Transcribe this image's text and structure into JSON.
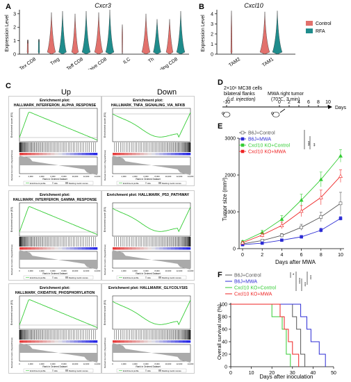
{
  "panel_labels": {
    "a": "A",
    "b": "B",
    "c": "C",
    "d": "D",
    "e": "E",
    "f": "F"
  },
  "panel_a": {
    "title": "Cxcr3",
    "ylabel": "Expression Level",
    "yticks": [
      "0",
      "1",
      "2",
      "3"
    ],
    "categories": [
      "Tex CD8",
      "Treg",
      "Teff CD8",
      "Naive CD8",
      "ILC",
      "Th",
      "Cycling CD8"
    ]
  },
  "panel_b": {
    "title": "Cxcl10",
    "ylabel": "Expression Level",
    "yticks": [
      "0",
      "1",
      "2",
      "3",
      "4"
    ],
    "categories": [
      "TAM2",
      "TAM1"
    ],
    "legend": [
      {
        "label": "Control",
        "color": "#E2716C"
      },
      {
        "label": "RFA",
        "color": "#1F8C8C"
      }
    ]
  },
  "panel_c": {
    "col_up": "Up",
    "col_down": "Down",
    "plots": [
      {
        "head": "Enrichment plot:",
        "name": "HALLMARK_INTERFERON_ALPHA_RESPONSE",
        "dir": "up"
      },
      {
        "head": "Enrichment plot:",
        "name": "HALLMARK_TNFA_SIGNALING_VIA_NFKB",
        "dir": "down"
      },
      {
        "head": "Enrichment plot:",
        "name": "HALLMARK_INTERFERON_GAMMA_RESPONSE",
        "dir": "up"
      },
      {
        "head": "Enrichment plot: HALLMARK_P53_PATHWAY",
        "name": "",
        "dir": "down"
      },
      {
        "head": "Enrichment plot:",
        "name": "HALLMARK_OXIDATIVE_PHOSPHORYLATION",
        "dir": "up"
      },
      {
        "head": "Enrichment plot: HALLMARK_GLYCOLYSIS",
        "name": "",
        "dir": "down"
      }
    ],
    "es_label": "Enrichment score (ES)",
    "rank_label": "Ranked list metric (Signal2Noise)",
    "xlabel": "Rank in Ordered Dataset",
    "xticks": [
      "0",
      "2,000",
      "4,000",
      "6,000",
      "8,000",
      "10,000",
      "12,000",
      "14,000"
    ],
    "legend_items": [
      "Enrichment profile",
      "Hits",
      "Ranking metric scores"
    ]
  },
  "panel_d": {
    "line1": "2×10⁶ MC38 cells",
    "line2": "bilateral flanks",
    "line3": "(i.d. injection)",
    "line4": "MWA right tumor",
    "line5": "(70℃,   3 min)",
    "ticks": [
      "-10",
      "0",
      "2",
      "4",
      "6",
      "8",
      "10"
    ],
    "unit": "Days"
  },
  "colors": {
    "b6ctrl": "#555555",
    "b6mwa": "#2B2BD4",
    "kocontrol": "#33CC33",
    "komwa": "#EE2222",
    "control": "#E2716C",
    "treated": "#1F8C8C"
  },
  "chart_data": [
    {
      "type": "line",
      "panel": "E",
      "xlabel": "Days after MWA",
      "ylabel": "Tumor size (mm³)",
      "xlim": [
        0,
        10
      ],
      "ylim": [
        0,
        3000
      ],
      "xticks": [
        "0",
        "2",
        "4",
        "6",
        "8",
        "10"
      ],
      "yticks": [
        "0",
        "1000",
        "2000",
        "3000"
      ],
      "significance": [
        "***",
        "**"
      ],
      "x": [
        0,
        2,
        4,
        6,
        8,
        10
      ],
      "series": [
        {
          "name": "B6J+Control",
          "color": "#555555",
          "values": [
            130,
            220,
            360,
            580,
            860,
            1230
          ],
          "err": [
            20,
            30,
            50,
            80,
            130,
            300
          ]
        },
        {
          "name": "B6J+MWA",
          "color": "#2B2BD4",
          "values": [
            110,
            150,
            230,
            320,
            500,
            820
          ],
          "err": [
            15,
            20,
            30,
            40,
            60,
            50
          ]
        },
        {
          "name": "Cxcl10 KO+Control",
          "color": "#33CC33",
          "values": [
            190,
            440,
            800,
            1320,
            1880,
            2520
          ],
          "err": [
            30,
            60,
            100,
            160,
            200,
            170
          ]
        },
        {
          "name": "Cxcl10 KO+MWA",
          "color": "#EE2222",
          "values": [
            160,
            370,
            630,
            1020,
            1390,
            1970
          ],
          "err": [
            30,
            60,
            90,
            150,
            200,
            170
          ]
        }
      ]
    },
    {
      "type": "line",
      "panel": "F",
      "xlabel": "Days after inoculation",
      "ylabel": "Overall survival rate (%)",
      "xlim": [
        0,
        50
      ],
      "ylim": [
        0,
        100
      ],
      "xticks": [
        "0",
        "10",
        "20",
        "30",
        "40",
        "50"
      ],
      "yticks": [
        "0",
        "20",
        "40",
        "60",
        "80",
        "100"
      ],
      "significance": [
        "*",
        "****",
        "***",
        "***"
      ],
      "series": [
        {
          "name": "B6J+Control",
          "color": "#555555",
          "steps": [
            [
              0,
              100
            ],
            [
              30,
              100
            ],
            [
              30,
              80
            ],
            [
              32,
              80
            ],
            [
              32,
              60
            ],
            [
              34,
              60
            ],
            [
              34,
              20
            ],
            [
              36,
              20
            ],
            [
              36,
              0
            ]
          ]
        },
        {
          "name": "B6J+MWA",
          "color": "#2B2BD4",
          "steps": [
            [
              0,
              100
            ],
            [
              34,
              100
            ],
            [
              34,
              80
            ],
            [
              37,
              80
            ],
            [
              37,
              60
            ],
            [
              39,
              60
            ],
            [
              39,
              40
            ],
            [
              43,
              40
            ],
            [
              43,
              20
            ],
            [
              46,
              20
            ],
            [
              46,
              0
            ]
          ]
        },
        {
          "name": "Cxcl10 KO+Control",
          "color": "#33CC33",
          "steps": [
            [
              0,
              100
            ],
            [
              20,
              100
            ],
            [
              20,
              80
            ],
            [
              25,
              80
            ],
            [
              25,
              60
            ],
            [
              27,
              60
            ],
            [
              27,
              20
            ],
            [
              29,
              20
            ],
            [
              29,
              0
            ]
          ]
        },
        {
          "name": "Cxcl10 KO+MWA",
          "color": "#EE2222",
          "steps": [
            [
              0,
              100
            ],
            [
              24,
              100
            ],
            [
              24,
              80
            ],
            [
              26,
              80
            ],
            [
              26,
              60
            ],
            [
              28,
              60
            ],
            [
              28,
              40
            ],
            [
              30,
              40
            ],
            [
              30,
              20
            ],
            [
              33,
              20
            ],
            [
              33,
              0
            ]
          ]
        }
      ]
    }
  ]
}
